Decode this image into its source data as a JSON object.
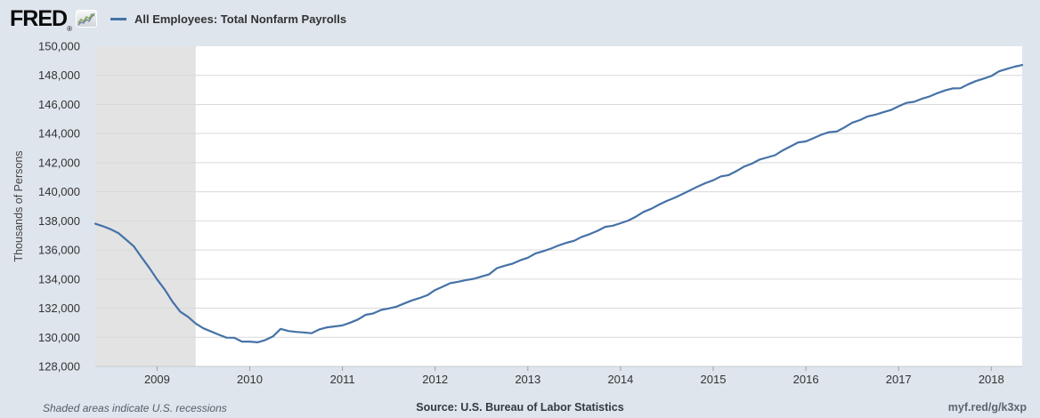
{
  "header": {
    "logo_text": "FRED",
    "registered_mark": "®",
    "legend": {
      "series_label": "All Employees: Total Nonfarm Payrolls",
      "marker_color": "#4572a7"
    }
  },
  "footer": {
    "recession_note": "Shaded areas indicate U.S. recessions",
    "source": "Source: U.S. Bureau of Labor Statistics",
    "short_url": "myf.red/g/k3xp"
  },
  "colors": {
    "page_background": "#dee5ed",
    "plot_background": "#ffffff",
    "recession_band": "#e3e3e3",
    "gridline": "#d9d9d9",
    "axis_line": "#c6cbd0",
    "line": "#4572a7",
    "tick_text": "#333333"
  },
  "chart_data": {
    "type": "line",
    "title": "All Employees: Total Nonfarm Payrolls",
    "ylabel": "Thousands of Persons",
    "xlabel": "",
    "frequency": "monthly",
    "grid": "horizontal",
    "legend_position": "top-left",
    "ylim": [
      128000,
      150000
    ],
    "y_ticks": [
      128000,
      130000,
      132000,
      134000,
      136000,
      138000,
      140000,
      142000,
      144000,
      146000,
      148000,
      150000
    ],
    "x_ticks": [
      2009,
      2010,
      2011,
      2012,
      2013,
      2014,
      2015,
      2016,
      2017,
      2018
    ],
    "x_range": [
      2008.3333,
      2018.3333
    ],
    "recession_color": "#e3e3e3",
    "recession_bands": [
      {
        "start": 2008.3333,
        "end": 2009.4167
      }
    ],
    "series": [
      {
        "name": "All Employees: Total Nonfarm Payrolls",
        "color": "#4572a7",
        "start": "2008-05",
        "end": "2018-05",
        "values": [
          137803,
          137631,
          137421,
          137162,
          136709,
          136243,
          135486,
          134774,
          133976,
          133275,
          132449,
          131765,
          131411,
          130944,
          130617,
          130401,
          130174,
          129976,
          129970,
          129703,
          129705,
          129655,
          129811,
          130062,
          130578,
          130435,
          130374,
          130332,
          130280,
          130543,
          130680,
          130751,
          130815,
          131006,
          131218,
          131542,
          131644,
          131880,
          131982,
          132104,
          132325,
          132532,
          132697,
          132893,
          133249,
          133481,
          133724,
          133820,
          133933,
          134021,
          134181,
          134330,
          134755,
          134917,
          135058,
          135291,
          135468,
          135770,
          135917,
          136097,
          136316,
          136497,
          136634,
          136902,
          137087,
          137312,
          137586,
          137670,
          137836,
          138023,
          138290,
          138620,
          138838,
          139122,
          139372,
          139585,
          139835,
          140102,
          140363,
          140592,
          140793,
          141059,
          141143,
          141419,
          141730,
          141936,
          142213,
          142364,
          142513,
          142845,
          143120,
          143392,
          143459,
          143696,
          143921,
          144096,
          144139,
          144426,
          144751,
          144927,
          145176,
          145300,
          145464,
          145619,
          145878,
          146110,
          146183,
          146390,
          146545,
          146775,
          146964,
          147102,
          147116,
          147387,
          147603,
          147778,
          147954,
          148278,
          148433,
          148597,
          148712
        ]
      }
    ]
  }
}
